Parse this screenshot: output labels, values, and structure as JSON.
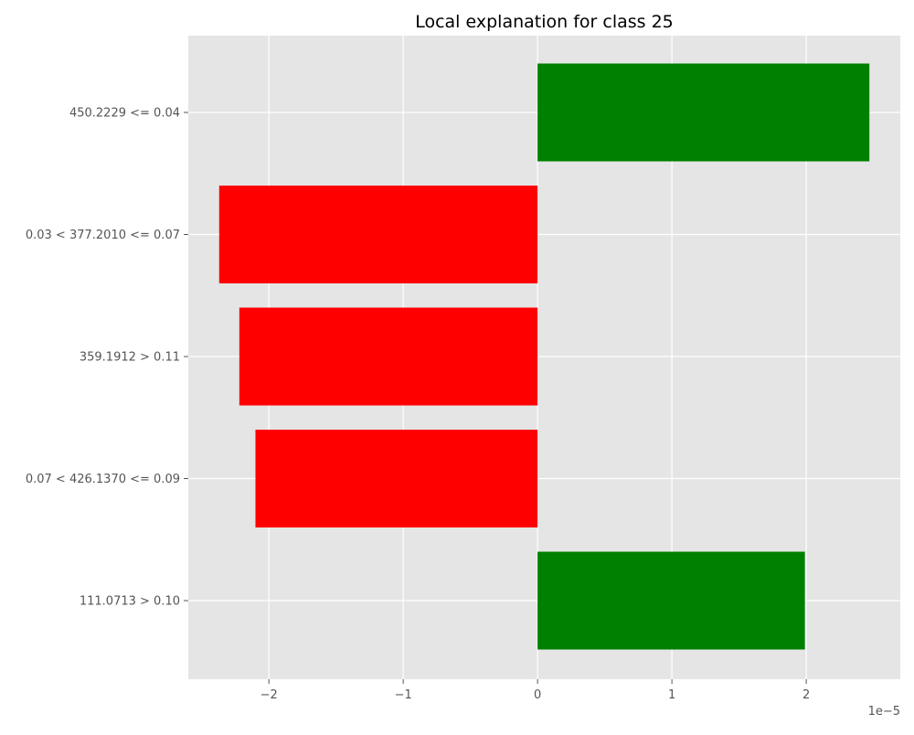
{
  "chart_data": {
    "type": "bar",
    "orientation": "horizontal",
    "title": "Local explanation for class 25",
    "categories": [
      "111.0713 > 0.10",
      "0.07 < 426.1370 <= 0.09",
      "359.1912 > 0.11",
      "0.03 < 377.2010 <= 0.07",
      "450.2229 <= 0.04"
    ],
    "values": [
      1.99e-05,
      -2.1e-05,
      -2.22e-05,
      -2.37e-05,
      2.47e-05
    ],
    "xlabel": "",
    "ylabel": "",
    "xlim": [
      -2.6e-05,
      2.7e-05
    ],
    "x_ticks": [
      -2e-05,
      -1e-05,
      0,
      1e-05,
      2e-05
    ],
    "x_tick_labels": [
      "−2",
      "−1",
      "0",
      "1",
      "2"
    ],
    "x_offset_label": "1e−5",
    "grid": true,
    "colors": {
      "positive": "#008000",
      "negative": "#ff0000",
      "plot_background": "#e5e5e5",
      "grid": "#ffffff",
      "tick_text": "#555555"
    }
  }
}
